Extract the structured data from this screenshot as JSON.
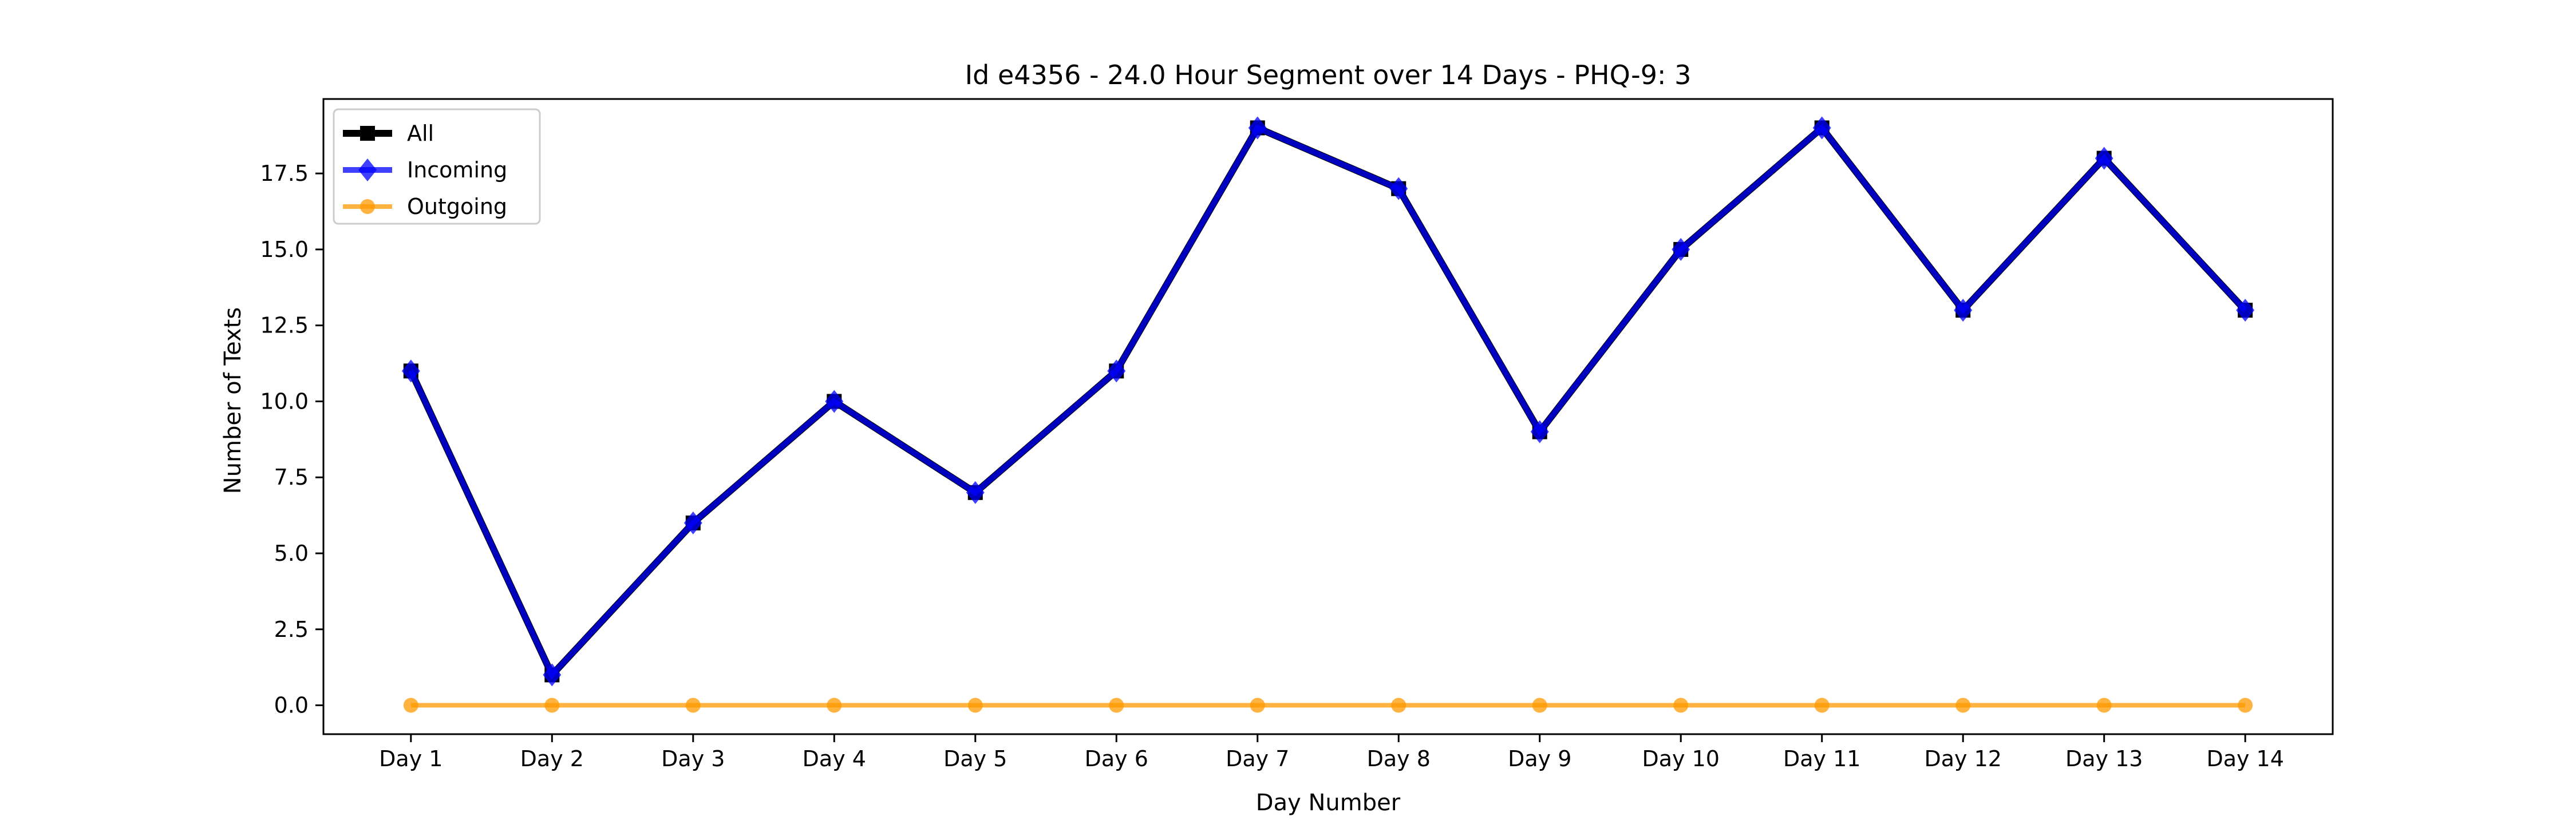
{
  "chart_data": {
    "type": "line",
    "title": "Id e4356 - 24.0 Hour Segment over 14 Days - PHQ-9: 3",
    "xlabel": "Day Number",
    "ylabel": "Number of Texts",
    "categories": [
      "Day 1",
      "Day 2",
      "Day 3",
      "Day 4",
      "Day 5",
      "Day 6",
      "Day 7",
      "Day 8",
      "Day 9",
      "Day 10",
      "Day 11",
      "Day 12",
      "Day 13",
      "Day 14"
    ],
    "ylim": [
      -0.95,
      19.95
    ],
    "yticks": [
      0.0,
      2.5,
      5.0,
      7.5,
      10.0,
      12.5,
      15.0,
      17.5
    ],
    "ytick_labels": [
      "0.0",
      "2.5",
      "5.0",
      "7.5",
      "10.0",
      "12.5",
      "15.0",
      "17.5"
    ],
    "grid": false,
    "legend_position": "upper-left",
    "series": [
      {
        "name": "All",
        "color": "#000000",
        "marker": "square",
        "values": [
          11,
          1,
          6,
          10,
          7,
          11,
          19,
          17,
          9,
          15,
          19,
          13,
          18,
          13
        ]
      },
      {
        "name": "Incoming",
        "color": "#0000ff",
        "marker": "diamond",
        "values": [
          11,
          1,
          6,
          10,
          7,
          11,
          19,
          17,
          9,
          15,
          19,
          13,
          18,
          13
        ]
      },
      {
        "name": "Outgoing",
        "color": "#ff9900",
        "marker": "circle",
        "values": [
          0,
          0,
          0,
          0,
          0,
          0,
          0,
          0,
          0,
          0,
          0,
          0,
          0,
          0
        ]
      }
    ]
  }
}
